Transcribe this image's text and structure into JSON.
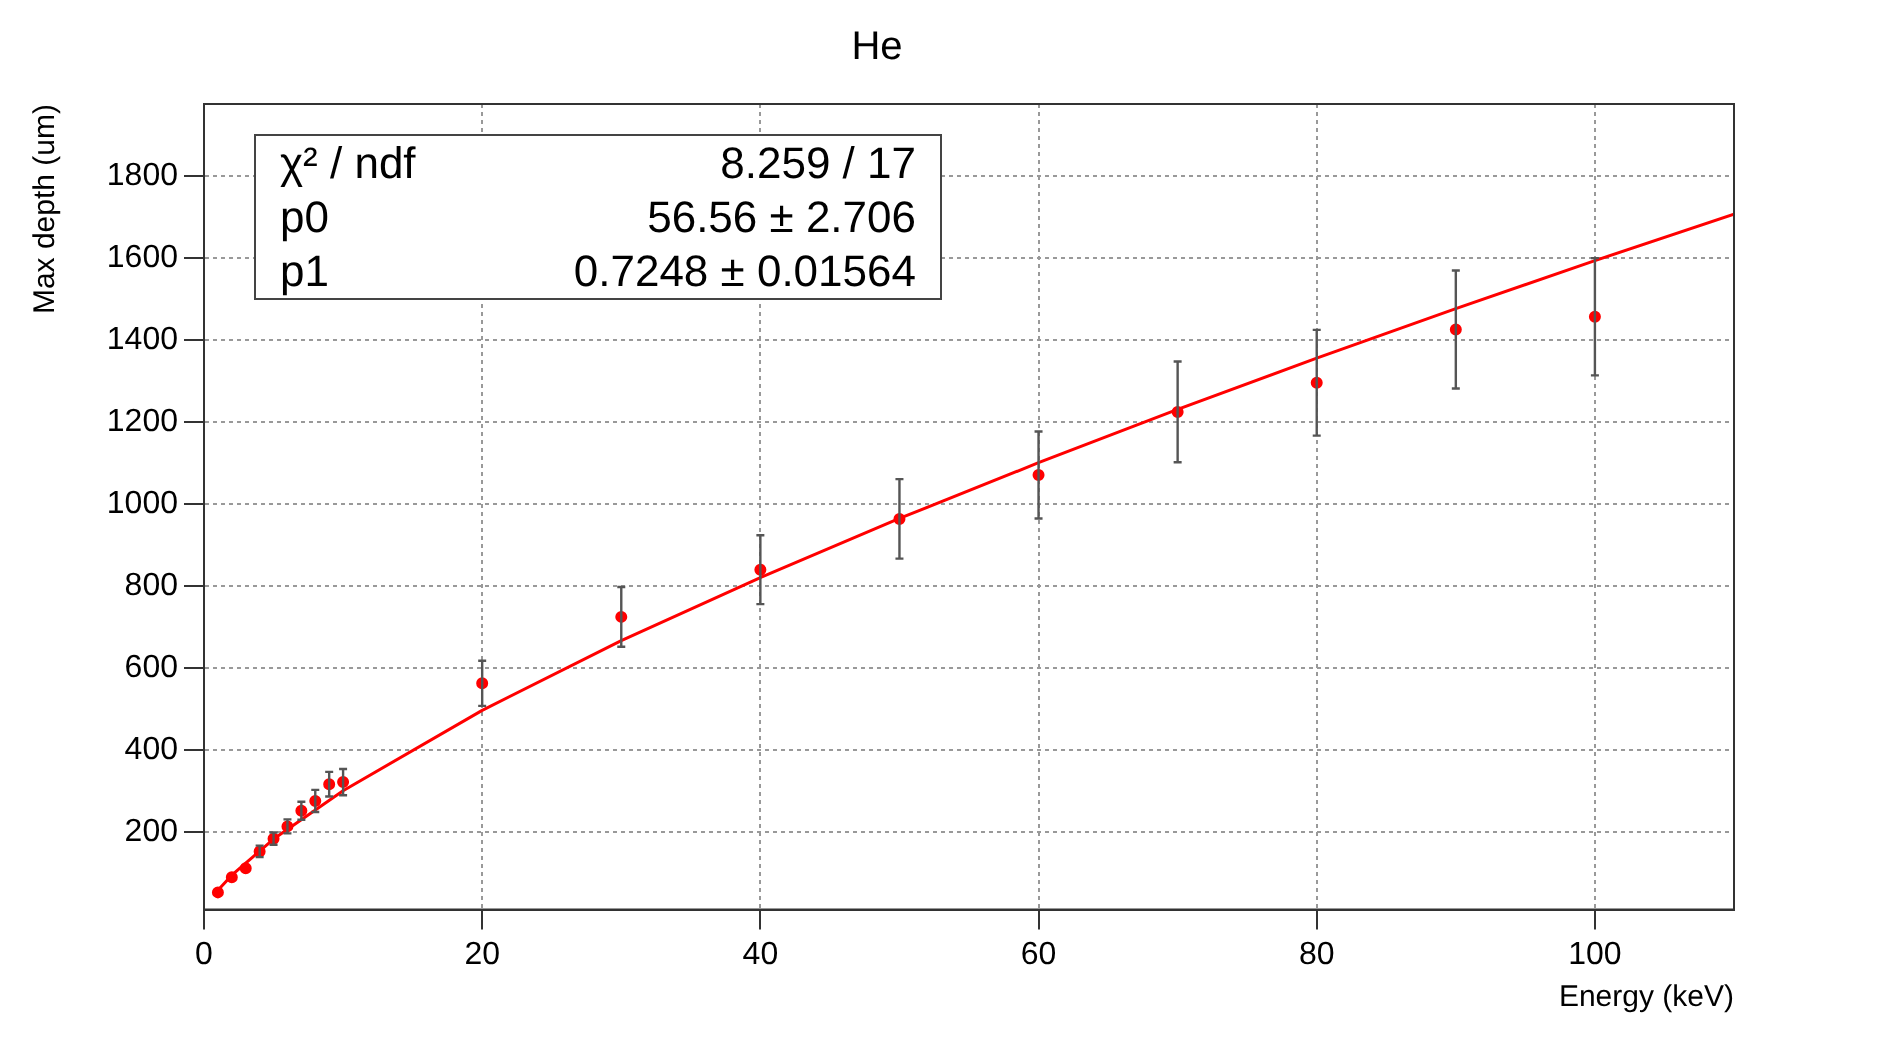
{
  "chart_data": {
    "type": "scatter",
    "title": "He",
    "xlabel": "Energy (keV)",
    "ylabel": "Max depth (um)",
    "xlim": [
      0,
      110
    ],
    "xticks": [
      0,
      20,
      40,
      60,
      80,
      100
    ],
    "ylim": [
      10,
      1975
    ],
    "yticks": [
      200,
      400,
      600,
      800,
      1000,
      1200,
      1400,
      1600,
      1800
    ],
    "grid": true,
    "marker": "circle",
    "annotations": [
      "χ² / ndf",
      "8.259 / 17",
      "p0",
      "56.56 ± 2.706",
      "p1",
      "0.7248 ± 0.01564"
    ],
    "series": [
      {
        "color": "#ff0000",
        "x": [
          1,
          2,
          3,
          4,
          5,
          6,
          7,
          8,
          9,
          10,
          20,
          30,
          40,
          50,
          60,
          70,
          80,
          90,
          100
        ],
        "values": [
          52,
          89,
          111,
          152,
          183,
          213,
          251,
          275,
          316,
          321,
          562,
          724,
          839,
          963,
          1070,
          1224,
          1295,
          1425,
          1456
        ],
        "errors": [
          null,
          null,
          null,
          14,
          15,
          17,
          22,
          27,
          30,
          32,
          55,
          73,
          84,
          97,
          106,
          123,
          129,
          144,
          143
        ]
      },
      {
        "type": "line",
        "color": "#ff0000",
        "marker": "none",
        "x": [
          0.8,
          1,
          2,
          5,
          10,
          20,
          30,
          40,
          50,
          60,
          70,
          80,
          90,
          100,
          110
        ],
        "values": [
          48,
          57,
          94,
          182,
          300,
          496,
          666,
          820,
          964,
          1100,
          1230,
          1355,
          1476,
          1593,
          1706
        ]
      }
    ]
  }
}
